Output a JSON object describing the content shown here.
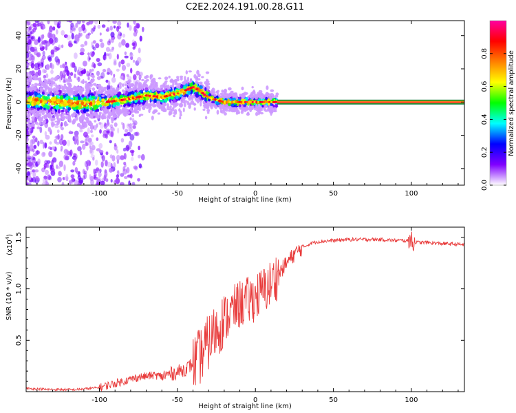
{
  "page_title": "C2E2.2024.191.00.28.G11",
  "chart_data": [
    {
      "type": "heatmap",
      "xlabel": "Height of straight line (km)",
      "ylabel": "Frequency (Hz)",
      "xlim": [
        -147,
        134
      ],
      "ylim": [
        -50,
        49
      ],
      "xticks": [
        -100,
        -50,
        0,
        50,
        100
      ],
      "yticks": [
        -40,
        -20,
        0,
        20,
        40
      ],
      "colorbar": {
        "label": "Normalized spectral amplitude",
        "range": [
          0.0,
          1.0
        ],
        "ticks": [
          "0.0",
          "0.2",
          "0.4",
          "0.6",
          "0.8"
        ],
        "tick_values": [
          0.0,
          0.2,
          0.4,
          0.6,
          0.8
        ],
        "colors": [
          "#ffffff",
          "#8000ff",
          "#0000ff",
          "#00ffff",
          "#00ff00",
          "#ffff00",
          "#ff8000",
          "#ff0000",
          "#ff00a0"
        ]
      },
      "ridge": {
        "x": [
          -147,
          -130,
          -110,
          -95,
          -80,
          -70,
          -60,
          -50,
          -45,
          -40,
          -36,
          -32,
          -28,
          -24,
          -20,
          -15,
          -10,
          -5,
          0,
          5,
          10,
          14,
          30,
          60,
          100,
          134
        ],
        "frequency": [
          1,
          0,
          -1,
          0,
          2,
          4,
          3,
          5,
          7,
          9,
          7,
          4,
          2,
          1,
          0,
          0,
          0,
          0,
          0,
          0,
          0,
          0,
          0,
          0,
          0,
          0
        ]
      },
      "grid": false,
      "legend": "none"
    },
    {
      "type": "line",
      "xlabel": "Height of straight line (km)",
      "ylabel": "SNR (10 * v/v)",
      "scale_label": "(x10",
      "scale_exponent": "4",
      "xlim": [
        -147,
        134
      ],
      "ylim": [
        0,
        1.6
      ],
      "xticks": [
        -100,
        -50,
        0,
        50,
        100
      ],
      "yticks": [
        "0.5",
        "1.0",
        "1.5"
      ],
      "ytick_values": [
        0.5,
        1.0,
        1.5
      ],
      "series_color": "#e83a3a",
      "series": [
        {
          "x": [
            -147,
            -130,
            -115,
            -100,
            -90,
            -80,
            -75,
            -70,
            -65,
            -60,
            -55,
            -50,
            -45,
            -40,
            -35,
            -30,
            -25,
            -20,
            -15,
            -10,
            -5,
            0,
            5,
            10,
            15,
            20,
            25,
            30,
            35,
            40,
            50,
            60,
            70,
            80,
            90,
            95,
            100,
            105,
            110,
            120,
            134
          ],
          "y": [
            0.03,
            0.02,
            0.02,
            0.04,
            0.08,
            0.12,
            0.14,
            0.15,
            0.16,
            0.15,
            0.17,
            0.19,
            0.22,
            0.27,
            0.35,
            0.48,
            0.6,
            0.7,
            0.78,
            0.85,
            0.88,
            0.92,
            0.98,
            1.05,
            1.15,
            1.25,
            1.34,
            1.4,
            1.44,
            1.46,
            1.47,
            1.48,
            1.48,
            1.48,
            1.47,
            1.47,
            1.46,
            1.45,
            1.45,
            1.44,
            1.43
          ]
        }
      ],
      "grid": false,
      "legend": "none"
    }
  ]
}
